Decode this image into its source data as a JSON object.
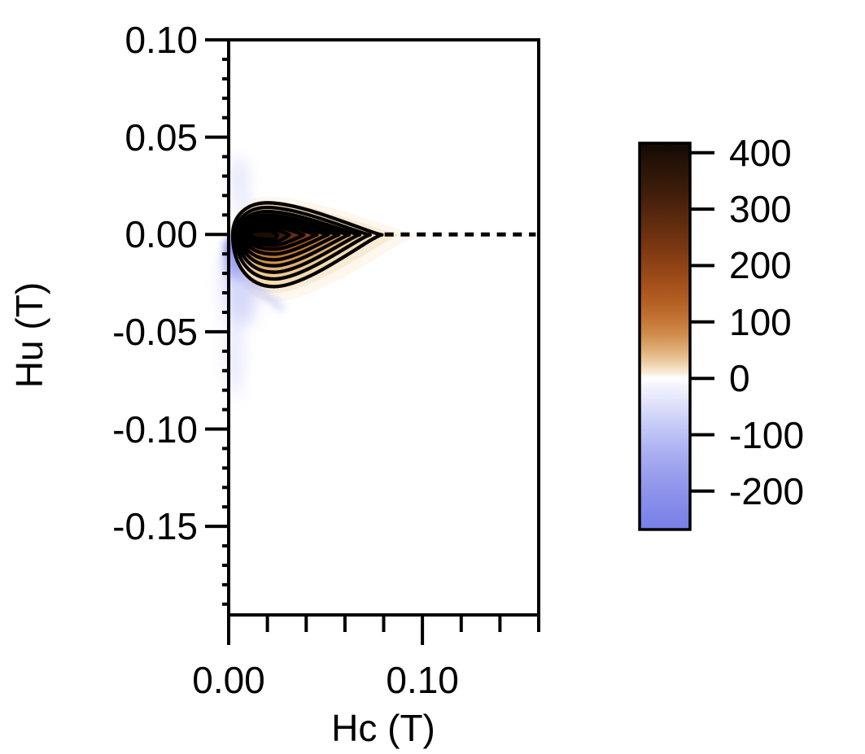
{
  "chart_data": {
    "type": "heatmap",
    "variant": "filled-contour FORC diagram",
    "x_axis": {
      "label": "Hc (T)",
      "min": 0,
      "max": 0.16,
      "major_ticks": [
        {
          "value": 0.0,
          "label": "0.00"
        },
        {
          "value": 0.1,
          "label": "0.10"
        }
      ],
      "minor_tick_step": 0.02
    },
    "y_axis": {
      "label": "Hu (T)",
      "min": -0.1955,
      "max": 0.1,
      "major_ticks": [
        {
          "value": 0.1,
          "label": "0.10"
        },
        {
          "value": 0.05,
          "label": "0.05"
        },
        {
          "value": 0.0,
          "label": "0.00"
        },
        {
          "value": -0.05,
          "label": "-0.05"
        },
        {
          "value": -0.1,
          "label": "-0.10"
        },
        {
          "value": -0.15,
          "label": "-0.15"
        }
      ],
      "minor_tick_step": 0.01
    },
    "colorbar": {
      "vmin": -268,
      "vmax": 417,
      "ticks": [
        {
          "value": 400,
          "label": "400"
        },
        {
          "value": 300,
          "label": "300"
        },
        {
          "value": 200,
          "label": "200"
        },
        {
          "value": 100,
          "label": "100"
        },
        {
          "value": 0,
          "label": "0"
        },
        {
          "value": -100,
          "label": "-100"
        },
        {
          "value": -200,
          "label": "-200"
        }
      ],
      "colormap": [
        [
          417,
          "#0f0903"
        ],
        [
          380,
          "#271307"
        ],
        [
          330,
          "#3f1d0a"
        ],
        [
          280,
          "#5d2a0e"
        ],
        [
          230,
          "#7c3812"
        ],
        [
          180,
          "#9c4a18"
        ],
        [
          140,
          "#b25d22"
        ],
        [
          105,
          "#c37434"
        ],
        [
          75,
          "#d18f50"
        ],
        [
          45,
          "#e2b580"
        ],
        [
          25,
          "#efd4ae"
        ],
        [
          10,
          "#f9ecd8"
        ],
        [
          2,
          "#fefcf8"
        ],
        [
          0,
          "#ffffff"
        ],
        [
          -15,
          "#f2f3fd"
        ],
        [
          -50,
          "#dcdefa"
        ],
        [
          -90,
          "#c2c6f6"
        ],
        [
          -130,
          "#abb0f1"
        ],
        [
          -170,
          "#999eed"
        ],
        [
          -210,
          "#8a90ea"
        ],
        [
          -268,
          "#777ee7"
        ]
      ]
    },
    "ridge": {
      "peak": {
        "hc": 0.021,
        "hu": 0.0,
        "value": 420
      },
      "hu_center": -0.0002,
      "hc_top": 0.02,
      "hc_bottom": 0.0235,
      "halo_levels": [
        {
          "value": 10,
          "hc_min": 0.0004,
          "hu_top": 0.0195,
          "hu_bottom": -0.0345,
          "hc_max": 0.0985,
          "fill": "#fdf7ee"
        },
        {
          "value": 25,
          "hc_min": 0.001,
          "hu_top": 0.0172,
          "hu_bottom": -0.03,
          "hc_max": 0.089,
          "fill": "#f8ebd6"
        }
      ],
      "contour_levels": [
        {
          "value": 40,
          "hc_min": 0.0021,
          "hu_top": 0.0163,
          "hu_bottom": -0.0268,
          "hc_max": 0.0791,
          "fill": "#f3dcb4"
        },
        {
          "value": 80,
          "hc_min": 0.0036,
          "hu_top": 0.0139,
          "hu_bottom": -0.0229,
          "hc_max": 0.073,
          "fill": "#ecca95"
        },
        {
          "value": 120,
          "hc_min": 0.0049,
          "hu_top": 0.0118,
          "hu_bottom": -0.0194,
          "hc_max": 0.0676,
          "fill": "#e0b173"
        },
        {
          "value": 160,
          "hc_min": 0.006,
          "hu_top": 0.01,
          "hu_bottom": -0.0161,
          "hc_max": 0.0622,
          "fill": "#d0954d"
        },
        {
          "value": 200,
          "hc_min": 0.0069,
          "hu_top": 0.0086,
          "hu_bottom": -0.013,
          "hc_max": 0.0568,
          "fill": "#bf7a31"
        },
        {
          "value": 240,
          "hc_min": 0.0078,
          "hu_top": 0.0072,
          "hu_bottom": -0.0101,
          "hc_max": 0.0514,
          "fill": "#a65a20"
        },
        {
          "value": 280,
          "hc_min": 0.0087,
          "hu_top": 0.0058,
          "hu_bottom": -0.0076,
          "hc_max": 0.0455,
          "fill": "#874115"
        },
        {
          "value": 320,
          "hc_min": 0.0096,
          "hu_top": 0.0045,
          "hu_bottom": -0.0056,
          "hc_max": 0.0388,
          "fill": "#632e0f"
        },
        {
          "value": 360,
          "hc_min": 0.0103,
          "hu_top": 0.0032,
          "hu_bottom": -0.0039,
          "hc_max": 0.0313,
          "fill": "#3f1f0a"
        },
        {
          "value": 400,
          "hc_min": 0.0113,
          "hu_top": 0.0021,
          "hu_bottom": -0.0026,
          "hc_max": 0.0252,
          "fill": "#1a0e05"
        }
      ]
    },
    "dashed_midline": {
      "hu": 0.0,
      "hc_start": 0.0805,
      "hc_end": 0.1585
    },
    "negative_region": {
      "description": "Blue negative lobe hugging Hc=0 below Hu=0",
      "hc_range": [
        0,
        0.015
      ],
      "hu_range": [
        -0.078,
        0.002
      ],
      "approx_min_value": -250
    },
    "negative_lobes": [
      {
        "hc": 0.0035,
        "hu": -0.006,
        "rx": 0.005,
        "ry": 0.0055,
        "color": "#7d83e8",
        "opacity": 0.9,
        "blur": 5
      },
      {
        "hc": 0.004,
        "hu": -0.0125,
        "rx": 0.0055,
        "ry": 0.01,
        "color": "#6b72e5",
        "opacity": 0.85,
        "blur": 6
      },
      {
        "hc": 0.006,
        "hu": -0.025,
        "rx": 0.009,
        "ry": 0.023,
        "color": "#b9bdf4",
        "opacity": 0.6,
        "blur": 10
      },
      {
        "hc": 0.003,
        "hu": -0.063,
        "rx": 0.0045,
        "ry": 0.02,
        "color": "#d5d8f9",
        "opacity": 0.55,
        "blur": 9
      },
      {
        "hc": 0.0055,
        "hu": 0.028,
        "rx": 0.0055,
        "ry": 0.012,
        "color": "#e3e6fb",
        "opacity": 0.8,
        "blur": 8
      },
      {
        "hc": 0.0075,
        "hu": 0.0165,
        "rx": 0.0045,
        "ry": 0.006,
        "color": "#eceefc",
        "opacity": 0.8,
        "blur": 6
      }
    ],
    "negative_streaks": [
      {
        "hc1": 0.002,
        "hu1": -0.018,
        "hc2": 0.027,
        "hu2": -0.0375,
        "width": 7,
        "color": "#b3b9f3",
        "opacity": 0.7,
        "blur": 5
      }
    ]
  }
}
